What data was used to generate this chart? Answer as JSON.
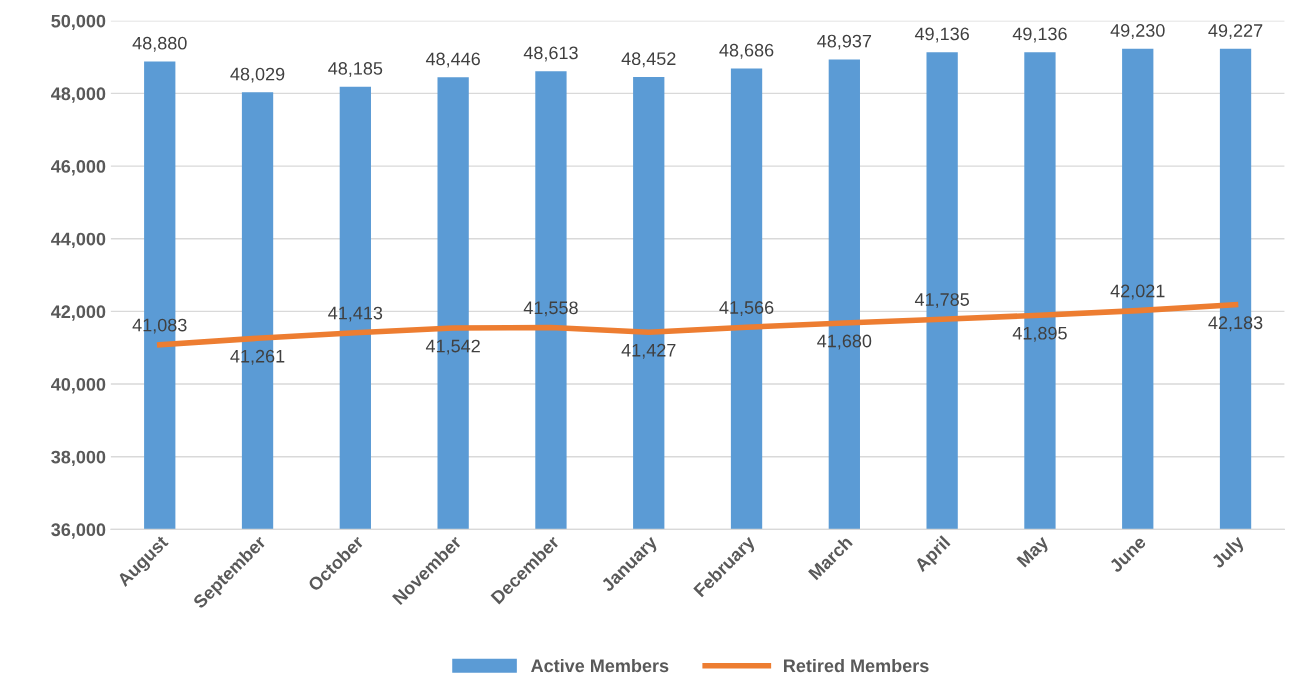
{
  "chart_data": {
    "type": "bar",
    "categories": [
      "August",
      "September",
      "October",
      "November",
      "December",
      "January",
      "February",
      "March",
      "April",
      "May",
      "June",
      "July"
    ],
    "series": [
      {
        "name": "Active Members",
        "color": "#5b9bd5",
        "values": [
          48880,
          48029,
          48185,
          48446,
          48613,
          48452,
          48686,
          48937,
          49136,
          49136,
          49230,
          49227
        ],
        "value_labels": [
          "48,880",
          "48,029",
          "48,185",
          "48,446",
          "48,613",
          "48,452",
          "48,686",
          "48,937",
          "49,136",
          "49,136",
          "49,230",
          "49,227"
        ]
      },
      {
        "name": "Retired Members",
        "type": "line",
        "color": "#ed7d31",
        "values": [
          41083,
          41261,
          41413,
          41542,
          41558,
          41427,
          41566,
          41680,
          41785,
          41895,
          42021,
          42183
        ],
        "value_labels": [
          "41,083",
          "41,261",
          "41,413",
          "41,542",
          "41,558",
          "41,427",
          "41,566",
          "41,680",
          "41,785",
          "41,895",
          "42,021",
          "42,183"
        ]
      }
    ],
    "ylim": [
      36000,
      50000
    ],
    "yticks": [
      {
        "value": 36000,
        "label": "36,000"
      },
      {
        "value": 38000,
        "label": "38,000"
      },
      {
        "value": 40000,
        "label": "40,000"
      },
      {
        "value": 42000,
        "label": "42,000"
      },
      {
        "value": 44000,
        "label": "44,000"
      },
      {
        "value": 46000,
        "label": "46,000"
      },
      {
        "value": 48000,
        "label": "48,000"
      },
      {
        "value": 50000,
        "label": "50,000"
      }
    ],
    "grid": "y",
    "legend": "bottom",
    "marker": "none",
    "line_style": "solid"
  }
}
